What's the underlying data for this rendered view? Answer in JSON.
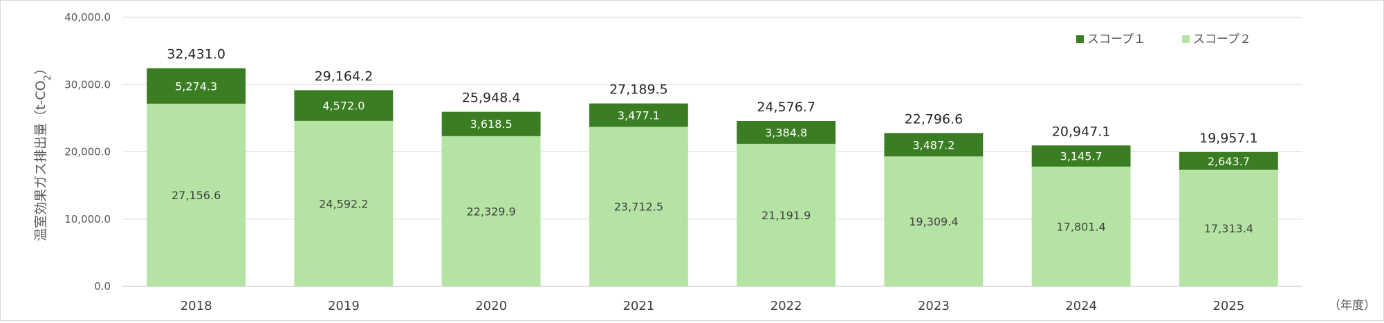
{
  "chart_data": {
    "type": "bar",
    "stacked": true,
    "categories": [
      "2018",
      "2019",
      "2020",
      "2021",
      "2022",
      "2023",
      "2024",
      "2025"
    ],
    "series": [
      {
        "name": "スコープ２",
        "color": "#b5e3a3",
        "values": [
          27156.6,
          24592.2,
          22329.9,
          23712.5,
          21191.9,
          19309.4,
          17801.4,
          17313.4
        ],
        "labels": [
          "27,156.6",
          "24,592.2",
          "22,329.9",
          "23,712.5",
          "21,191.9",
          "19,309.4",
          "17,801.4",
          "17,313.4"
        ]
      },
      {
        "name": "スコープ１",
        "color": "#3b7d23",
        "values": [
          5274.3,
          4572.0,
          3618.5,
          3477.1,
          3384.8,
          3487.2,
          3145.7,
          2643.7
        ],
        "labels": [
          "5,274.3",
          "4,572.0",
          "3,618.5",
          "3,477.1",
          "3,384.8",
          "3,487.2",
          "3,145.7",
          "2,643.7"
        ]
      }
    ],
    "totals": [
      32431.0,
      29164.2,
      25948.4,
      27189.5,
      24576.7,
      22796.6,
      20947.1,
      19957.1
    ],
    "total_labels": [
      "32,431.0",
      "29,164.2",
      "25,948.4",
      "27,189.5",
      "24,576.7",
      "22,796.6",
      "20,947.1",
      "19,957.1"
    ],
    "ylabel_main": "温室効果ガス排出量（t-CO",
    "ylabel_sub": "2",
    "ylabel_end": "）",
    "x_unit": "（年度）",
    "ylim": [
      0,
      40000
    ],
    "yticks": [
      0,
      10000,
      20000,
      30000,
      40000
    ],
    "ytick_labels": [
      "0.0",
      "10,000.0",
      "20,000.0",
      "30,000.0",
      "40,000.0"
    ],
    "grid": true,
    "legend": {
      "placement": "top-right",
      "order": [
        "スコープ１",
        "スコープ２"
      ]
    }
  }
}
